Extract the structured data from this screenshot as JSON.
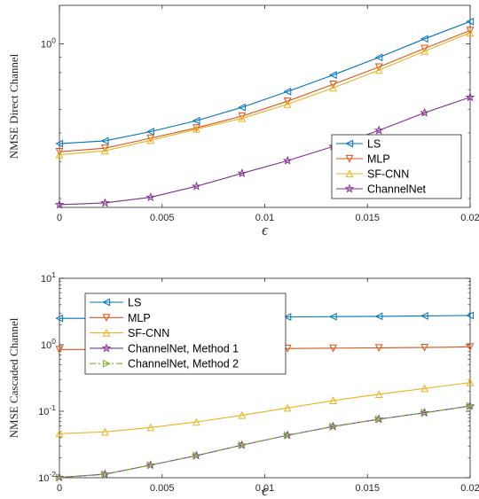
{
  "chart_data": [
    {
      "type": "line",
      "title": "",
      "xlabel": "ϵ",
      "ylabel": "NMSE Direct Channel",
      "yscale": "log",
      "xlim": [
        0,
        0.02
      ],
      "ylim": [
        0.28,
        1.35
      ],
      "x_ticks": [
        0,
        0.005,
        0.01,
        0.015,
        0.02
      ],
      "x_tick_labels": [
        "0",
        "0.005",
        "0.01",
        "0.015",
        "0.02"
      ],
      "y_ticks": [
        1
      ],
      "y_tick_labels": [
        "10^0"
      ],
      "grid": false,
      "legend_position": "bottom-right",
      "x": [
        0,
        0.00222,
        0.00444,
        0.00667,
        0.00889,
        0.01111,
        0.01333,
        0.01556,
        0.01778,
        0.02
      ],
      "series": [
        {
          "name": "LS",
          "color": "#0072BD",
          "marker": "triangle-left",
          "style": "solid",
          "values": [
            0.46,
            0.47,
            0.505,
            0.55,
            0.61,
            0.69,
            0.785,
            0.9,
            1.04,
            1.19
          ]
        },
        {
          "name": "MLP",
          "color": "#D95319",
          "marker": "triangle-down",
          "style": "solid",
          "values": [
            0.432,
            0.444,
            0.48,
            0.52,
            0.57,
            0.64,
            0.73,
            0.835,
            0.965,
            1.11
          ]
        },
        {
          "name": "SF-CNN",
          "color": "#EDB120",
          "marker": "triangle-up",
          "style": "solid",
          "values": [
            0.422,
            0.435,
            0.472,
            0.515,
            0.56,
            0.625,
            0.71,
            0.815,
            0.945,
            1.09
          ]
        },
        {
          "name": "ChannelNet",
          "color": "#7E2F8E",
          "marker": "pentagram",
          "style": "solid",
          "values": [
            0.286,
            0.29,
            0.303,
            0.33,
            0.365,
            0.403,
            0.45,
            0.51,
            0.585,
            0.66
          ]
        }
      ]
    },
    {
      "type": "line",
      "title": "",
      "xlabel": "ϵ",
      "ylabel": "NMSE Cascaded Channel",
      "yscale": "log",
      "xlim": [
        0,
        0.02
      ],
      "ylim": [
        0.01,
        10
      ],
      "x_ticks": [
        0,
        0.005,
        0.01,
        0.015,
        0.02
      ],
      "x_tick_labels": [
        "0",
        "0.005",
        "0.01",
        "0.015",
        "0.02"
      ],
      "y_ticks": [
        0.01,
        0.1,
        1,
        10
      ],
      "y_tick_labels": [
        "10^-2",
        "10^-1",
        "10^0",
        "10^1"
      ],
      "grid": false,
      "legend_position": "top-left",
      "x": [
        0,
        0.00222,
        0.00444,
        0.00667,
        0.00889,
        0.01111,
        0.01333,
        0.01556,
        0.01778,
        0.02
      ],
      "series": [
        {
          "name": "LS",
          "color": "#0072BD",
          "marker": "triangle-left",
          "style": "solid",
          "values": [
            2.5,
            2.5,
            2.52,
            2.55,
            2.58,
            2.62,
            2.65,
            2.68,
            2.72,
            2.76
          ]
        },
        {
          "name": "MLP",
          "color": "#D95319",
          "marker": "triangle-down",
          "style": "solid",
          "values": [
            0.85,
            0.85,
            0.86,
            0.86,
            0.87,
            0.88,
            0.89,
            0.9,
            0.91,
            0.93
          ]
        },
        {
          "name": "SF-CNN",
          "color": "#EDB120",
          "marker": "triangle-up",
          "style": "solid",
          "values": [
            0.046,
            0.049,
            0.057,
            0.069,
            0.087,
            0.112,
            0.145,
            0.18,
            0.22,
            0.27
          ]
        },
        {
          "name": "ChannelNet, Method 1",
          "color": "#7E2F8E",
          "marker": "pentagram",
          "style": "solid",
          "values": [
            0.0101,
            0.0113,
            0.0155,
            0.0215,
            0.031,
            0.0435,
            0.059,
            0.076,
            0.095,
            0.12
          ]
        },
        {
          "name": "ChannelNet, Method 2",
          "color": "#77AC30",
          "marker": "triangle-right",
          "style": "dashdot",
          "values": [
            0.0101,
            0.0113,
            0.0155,
            0.0215,
            0.031,
            0.0435,
            0.059,
            0.076,
            0.095,
            0.12
          ]
        }
      ]
    }
  ]
}
